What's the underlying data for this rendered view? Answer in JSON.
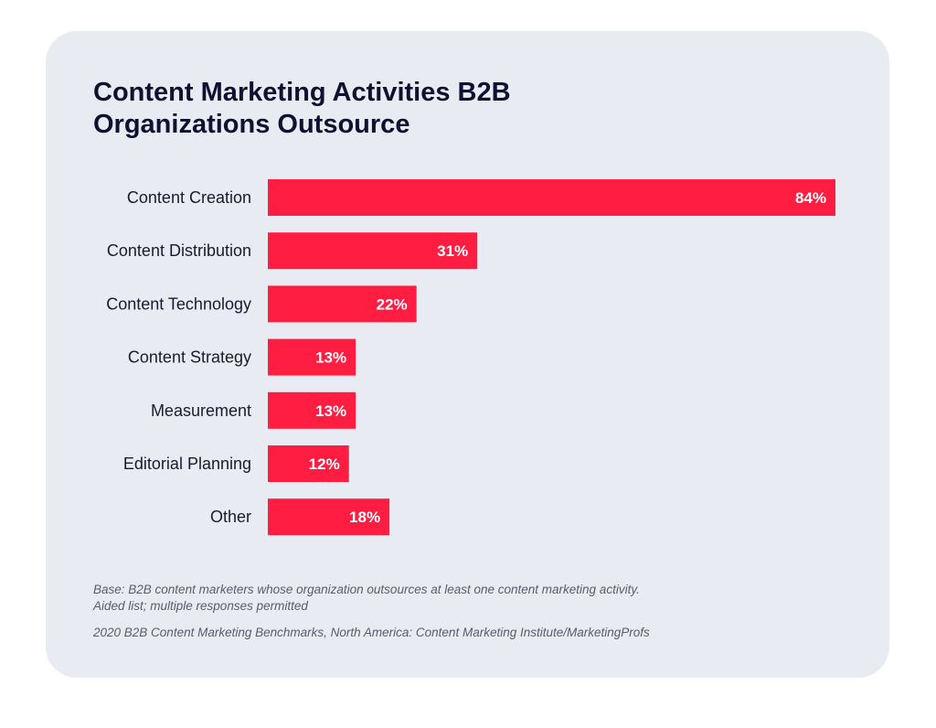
{
  "title_lines": [
    "Content Marketing Activities B2B",
    "Organizations Outsource"
  ],
  "footnote_base": [
    "Base: B2B content marketers whose organization outsources at least one content marketing activity.",
    "Aided list; multiple responses permitted"
  ],
  "source": "2020 B2B Content Marketing Benchmarks, North America: Content Marketing Institute/MarketingProfs",
  "colors": {
    "bar": "#ff1e41",
    "card": "#e9ebf3",
    "title": "#0f1130"
  },
  "chart_data": {
    "type": "bar",
    "orientation": "horizontal",
    "title": "Content Marketing Activities B2B Organizations Outsource",
    "categories": [
      "Content Creation",
      "Content Distribution",
      "Content Technology",
      "Content Strategy",
      "Measurement",
      "Editorial Planning",
      "Other"
    ],
    "values": [
      84,
      31,
      22,
      13,
      13,
      12,
      18
    ],
    "value_labels": [
      "84%",
      "31%",
      "22%",
      "13%",
      "13%",
      "12%",
      "18%"
    ],
    "unit": "%",
    "xlim": [
      0,
      84
    ],
    "grid": false,
    "legend": "none"
  }
}
